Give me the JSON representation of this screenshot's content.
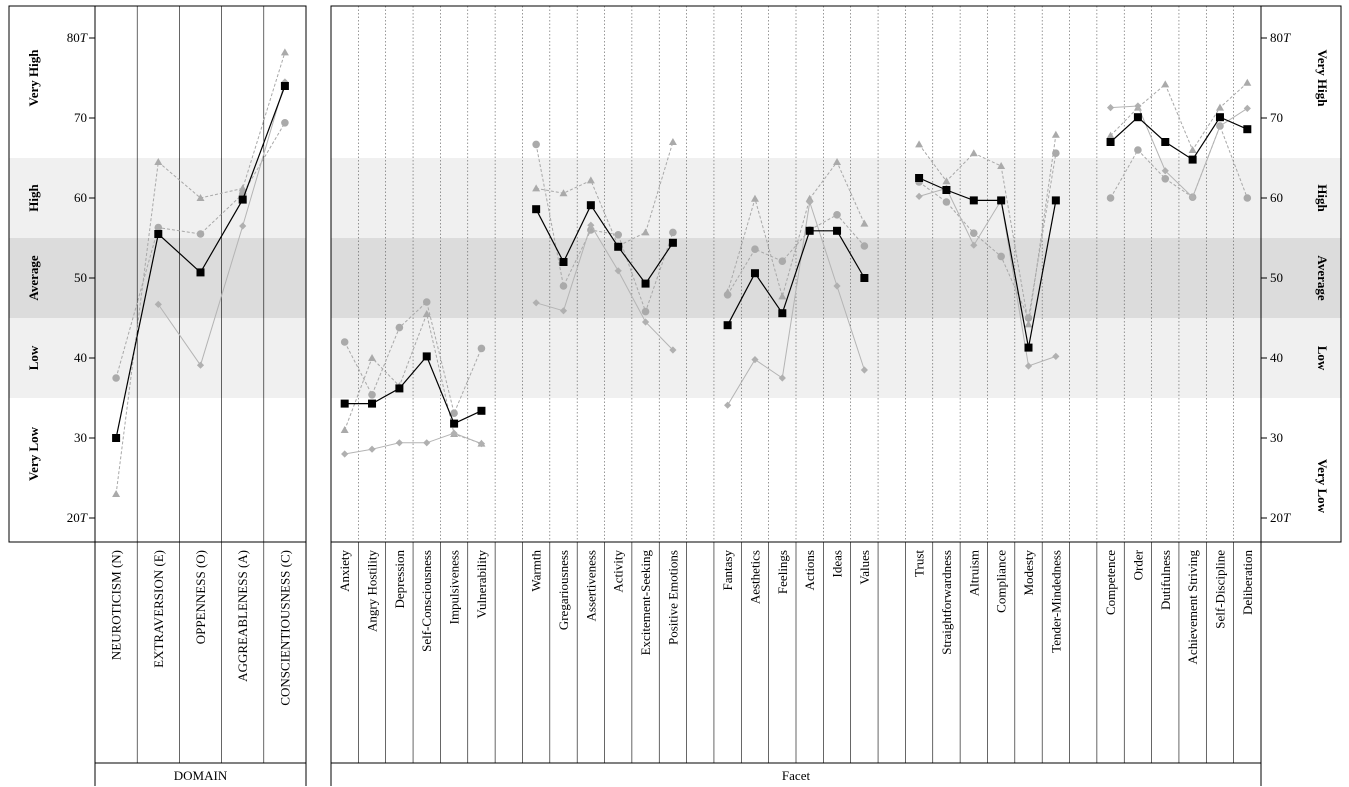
{
  "chart_data": {
    "type": "line",
    "ylim": [
      17,
      84
    ],
    "y_ticks": [
      {
        "value": 20,
        "label": "20",
        "suffix": "T"
      },
      {
        "value": 30,
        "label": "30",
        "suffix": ""
      },
      {
        "value": 40,
        "label": "40",
        "suffix": ""
      },
      {
        "value": 50,
        "label": "50",
        "suffix": ""
      },
      {
        "value": 60,
        "label": "60",
        "suffix": ""
      },
      {
        "value": 70,
        "label": "70",
        "suffix": ""
      },
      {
        "value": 80,
        "label": "80",
        "suffix": "T"
      }
    ],
    "bands": [
      {
        "label": "Very Low",
        "from": 17,
        "to": 35,
        "color": "#ffffff"
      },
      {
        "label": "Low",
        "from": 35,
        "to": 45,
        "color": "#f0f0f0"
      },
      {
        "label": "Average",
        "from": 45,
        "to": 55,
        "color": "#dcdcdc"
      },
      {
        "label": "High",
        "from": 55,
        "to": 65,
        "color": "#f0f0f0"
      },
      {
        "label": "Very High",
        "from": 65,
        "to": 84,
        "color": "#ffffff"
      }
    ],
    "left_band_labels": [
      {
        "label": "Very High",
        "value": 75
      },
      {
        "label": "High",
        "value": 60
      },
      {
        "label": "Average",
        "value": 50
      },
      {
        "label": "Low",
        "value": 40
      },
      {
        "label": "Very Low",
        "value": 28
      }
    ],
    "right_band_labels": [
      {
        "label": "Very High",
        "value": 75
      },
      {
        "label": "High",
        "value": 60
      },
      {
        "label": "Average",
        "value": 50
      },
      {
        "label": "Low",
        "value": 40
      },
      {
        "label": "Very Low",
        "value": 24
      }
    ],
    "domain_panel": {
      "group_label": "DOMAIN",
      "categories": [
        "NEUROTICISM (N)",
        "EXTRAVERSION (E)",
        "OPPENNESS (O)",
        "AGGREABLENESS (A)",
        "CONSCIENTIOUSNESS (C)"
      ],
      "series": [
        {
          "marker": "square",
          "style": "primary",
          "values": [
            30,
            55.5,
            50.7,
            59.8,
            74
          ]
        },
        {
          "marker": "circle",
          "style": "dashed",
          "values": [
            37.5,
            56.3,
            55.5,
            60.5,
            69.4
          ]
        },
        {
          "marker": "triangle",
          "style": "dashed",
          "values": [
            23,
            64.5,
            60,
            61.2,
            78.2
          ]
        },
        {
          "marker": "diamond",
          "style": "solid-light",
          "values": [
            null,
            46.7,
            39.1,
            56.5,
            74.5
          ]
        }
      ]
    },
    "facet_panel": {
      "group_label": "Facet",
      "groups": [
        {
          "categories": [
            "Anxiety",
            "Angry Hostility",
            "Depression",
            "Self-Consciousness",
            "Impulsiveness",
            "Vulnerability"
          ],
          "series": [
            {
              "marker": "square",
              "style": "primary",
              "values": [
                34.3,
                34.3,
                36.2,
                40.2,
                31.8,
                33.4
              ]
            },
            {
              "marker": "circle",
              "style": "dashed",
              "values": [
                42,
                35.4,
                43.8,
                47.0,
                33.1,
                41.2
              ]
            },
            {
              "marker": "triangle",
              "style": "dashed",
              "values": [
                31.0,
                40.0,
                36.5,
                45.5,
                30.5,
                29.3
              ]
            },
            {
              "marker": "diamond",
              "style": "solid-light",
              "values": [
                28.0,
                28.6,
                29.4,
                29.4,
                30.6,
                29.3
              ]
            }
          ]
        },
        {
          "categories": [
            "Warmth",
            "Gregariousness",
            "Assertiveness",
            "Activity",
            "Excitement-Seeking",
            "Positive Emotions"
          ],
          "series": [
            {
              "marker": "square",
              "style": "primary",
              "values": [
                58.6,
                52,
                59.1,
                53.9,
                49.3,
                54.4
              ]
            },
            {
              "marker": "circle",
              "style": "dashed",
              "values": [
                66.7,
                49,
                56.0,
                55.4,
                45.8,
                55.7
              ]
            },
            {
              "marker": "triangle",
              "style": "dashed",
              "values": [
                61.2,
                60.6,
                62.2,
                54.0,
                55.7,
                67
              ]
            },
            {
              "marker": "diamond",
              "style": "solid-light",
              "values": [
                46.9,
                45.9,
                56.6,
                50.9,
                44.5,
                41
              ]
            }
          ]
        },
        {
          "categories": [
            "Fantasy",
            "Aesthetics",
            "Feelings",
            "Actions",
            "Ideas",
            "Values"
          ],
          "series": [
            {
              "marker": "square",
              "style": "primary",
              "values": [
                44.1,
                50.6,
                45.6,
                55.9,
                55.9,
                50.0
              ]
            },
            {
              "marker": "circle",
              "style": "dashed",
              "values": [
                47.9,
                53.6,
                52.1,
                56,
                57.9,
                54.0
              ]
            },
            {
              "marker": "triangle",
              "style": "dashed",
              "values": [
                48.2,
                59.9,
                47.7,
                59.9,
                64.5,
                56.8
              ]
            },
            {
              "marker": "diamond",
              "style": "solid-light",
              "values": [
                34.1,
                39.8,
                37.5,
                59.5,
                49.0,
                38.5
              ]
            }
          ]
        },
        {
          "categories": [
            "Trust",
            "Straightforwardness",
            "Altruism",
            "Compliance",
            "Modesty",
            "Tender-Mindedness"
          ],
          "series": [
            {
              "marker": "square",
              "style": "primary",
              "values": [
                62.5,
                61,
                59.7,
                59.7,
                41.3,
                59.7
              ]
            },
            {
              "marker": "circle",
              "style": "dashed",
              "values": [
                62.0,
                59.5,
                55.6,
                52.7,
                45,
                65.6
              ]
            },
            {
              "marker": "triangle",
              "style": "dashed",
              "values": [
                66.7,
                62.1,
                65.6,
                64.0,
                44.2,
                67.9
              ]
            },
            {
              "marker": "diamond",
              "style": "solid-light",
              "values": [
                60.2,
                61.2,
                54.1,
                59.7,
                39.0,
                40.2
              ]
            }
          ]
        },
        {
          "categories": [
            "Competence",
            "Order",
            "Dutifulness",
            "Achievement Striving",
            "Self-Discipline",
            "Deliberation"
          ],
          "series": [
            {
              "marker": "square",
              "style": "primary",
              "values": [
                67,
                70.1,
                67,
                64.8,
                70.1,
                68.6
              ]
            },
            {
              "marker": "circle",
              "style": "dashed",
              "values": [
                60,
                66,
                62.4,
                60.1,
                69,
                60
              ]
            },
            {
              "marker": "triangle",
              "style": "dashed",
              "values": [
                67.8,
                71.3,
                74.2,
                66.0,
                71.3,
                74.4
              ]
            },
            {
              "marker": "diamond",
              "style": "solid-light",
              "values": [
                71.3,
                71.5,
                63.4,
                60.1,
                69.0,
                71.2
              ]
            }
          ]
        }
      ]
    }
  }
}
